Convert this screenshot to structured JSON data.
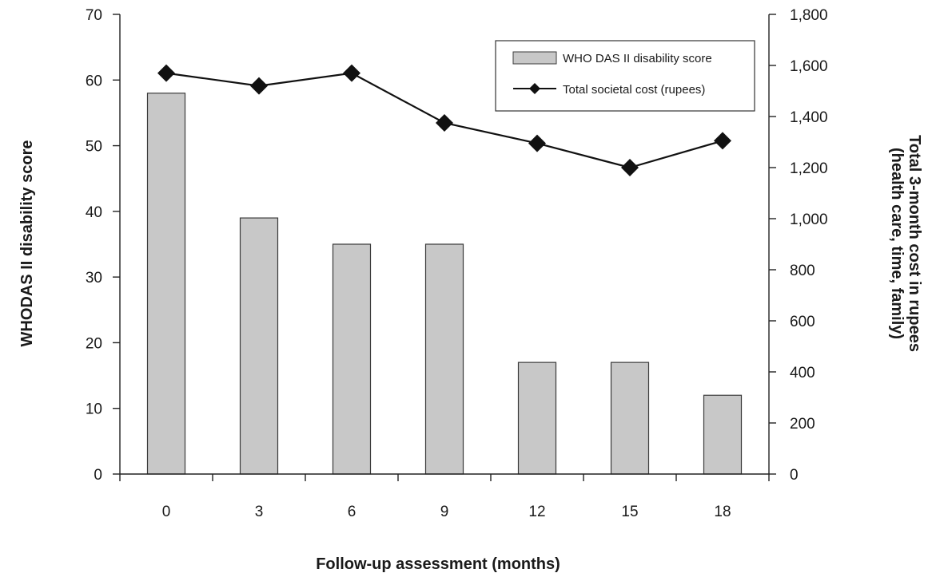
{
  "chart_data": {
    "type": "bar",
    "categories": [
      "0",
      "3",
      "6",
      "9",
      "12",
      "15",
      "18"
    ],
    "series": [
      {
        "name": "WHO DAS II disability score",
        "type": "bar",
        "axis": "left",
        "values": [
          58,
          39,
          35,
          35,
          17,
          17,
          12
        ]
      },
      {
        "name": "Total societal cost (rupees)",
        "type": "line",
        "axis": "right",
        "marker": "diamond",
        "values": [
          1570,
          1520,
          1570,
          1375,
          1295,
          1200,
          1305
        ]
      }
    ],
    "xlabel": "Follow-up assessment (months)",
    "ylabel": "WHODAS II disability score",
    "y2label_line1": "Total 3-month cost in rupees",
    "y2label_line2": "(health care, time, family)",
    "ylim": [
      0,
      70
    ],
    "yticks": [
      "0",
      "10",
      "20",
      "30",
      "40",
      "50",
      "60",
      "70"
    ],
    "y2lim": [
      0,
      1800
    ],
    "y2ticks": [
      "0",
      "200",
      "400",
      "600",
      "800",
      "1,000",
      "1,200",
      "1,400",
      "1,600",
      "1,800"
    ],
    "legend_position": "top-right",
    "grid": false,
    "colors": {
      "bar_fill": "#c8c8c8",
      "bar_stroke": "#3a3a3a",
      "line": "#111111",
      "axis": "#222222"
    }
  }
}
